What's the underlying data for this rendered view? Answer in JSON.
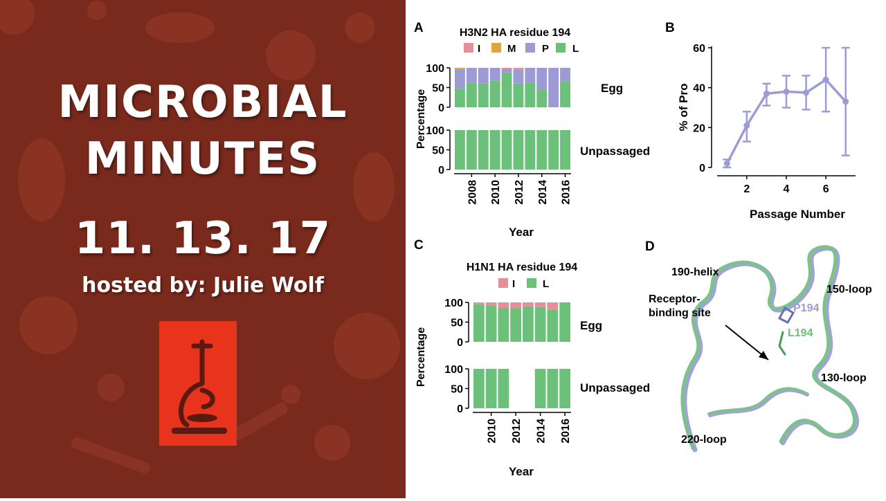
{
  "banner": {
    "title_line1": "MICROBIAL",
    "title_line2": "MINUTES",
    "date": "11. 13. 17",
    "host": "hosted by: Julie Wolf"
  },
  "colors": {
    "background": "#7a2a1c",
    "logo_bg": "#e8341c",
    "I": "#e58f99",
    "M": "#e0a43a",
    "P": "#9c9bd6",
    "L": "#6cc17a",
    "pro_line": "#9c9bd6"
  },
  "chart_data": [
    {
      "panel": "A",
      "type": "bar",
      "stacked": true,
      "title": "H3N2 HA residue 194",
      "legend": [
        "I",
        "M",
        "P",
        "L"
      ],
      "ylabel": "Percentage",
      "xlabel": "Year",
      "ylim": [
        0,
        100
      ],
      "yticks": [
        0,
        50,
        100
      ],
      "x": [
        2007,
        2008,
        2009,
        2010,
        2011,
        2012,
        2013,
        2014,
        2015,
        2016
      ],
      "xtick_labels": [
        "2008",
        "2010",
        "2012",
        "2014",
        "2016"
      ],
      "subpanels": [
        {
          "label": "Egg",
          "series": [
            {
              "name": "L",
              "values": [
                47,
                62,
                60,
                68,
                88,
                60,
                62,
                44,
                0,
                66
              ]
            },
            {
              "name": "P",
              "values": [
                50,
                38,
                40,
                32,
                10,
                36,
                38,
                56,
                100,
                34
              ]
            },
            {
              "name": "M",
              "values": [
                3,
                0,
                0,
                0,
                0,
                0,
                0,
                0,
                0,
                0
              ]
            },
            {
              "name": "I",
              "values": [
                0,
                0,
                0,
                0,
                2,
                4,
                0,
                0,
                0,
                0
              ]
            }
          ]
        },
        {
          "label": "Unpassaged",
          "series": [
            {
              "name": "L",
              "values": [
                100,
                100,
                100,
                100,
                100,
                100,
                100,
                100,
                100,
                100
              ]
            }
          ]
        }
      ]
    },
    {
      "panel": "B",
      "type": "line",
      "xlabel": "Passage Number",
      "ylabel": "% of Pro",
      "xlim": [
        0.5,
        7.5
      ],
      "ylim": [
        0,
        60
      ],
      "xticks": [
        2,
        4,
        6
      ],
      "yticks": [
        0,
        20,
        40,
        60
      ],
      "series": [
        {
          "x": [
            1,
            2,
            3,
            4,
            5,
            6,
            7
          ],
          "y": [
            2,
            21,
            37,
            38,
            37.5,
            44,
            33
          ],
          "err_low": [
            0,
            13,
            31,
            30,
            29,
            28,
            6
          ],
          "err_high": [
            4,
            28,
            42,
            46,
            46,
            60,
            60
          ]
        }
      ]
    },
    {
      "panel": "C",
      "type": "bar",
      "stacked": true,
      "title": "H1N1 HA residue 194",
      "legend": [
        "I",
        "L"
      ],
      "ylabel": "Percentage",
      "xlabel": "Year",
      "ylim": [
        0,
        100
      ],
      "yticks": [
        0,
        50,
        100
      ],
      "x": [
        2009,
        2010,
        2011,
        2012,
        2013,
        2014,
        2015,
        2016
      ],
      "xtick_labels": [
        "2010",
        "2012",
        "2014",
        "2016"
      ],
      "subpanels": [
        {
          "label": "Egg",
          "series": [
            {
              "name": "L",
              "values": [
                95,
                92,
                86,
                85,
                90,
                88,
                82,
                100
              ]
            },
            {
              "name": "I",
              "values": [
                5,
                8,
                14,
                15,
                10,
                12,
                18,
                0
              ]
            }
          ]
        },
        {
          "label": "Unpassaged",
          "series": [
            {
              "name": "L",
              "values": [
                100,
                100,
                100,
                0,
                0,
                100,
                100,
                100
              ]
            }
          ]
        }
      ]
    }
  ],
  "panel_d": {
    "label": "D",
    "labels": [
      "190-helix",
      "150-loop",
      "Receptor-",
      "binding site",
      "P194",
      "L194",
      "130-loop",
      "220-loop"
    ]
  }
}
